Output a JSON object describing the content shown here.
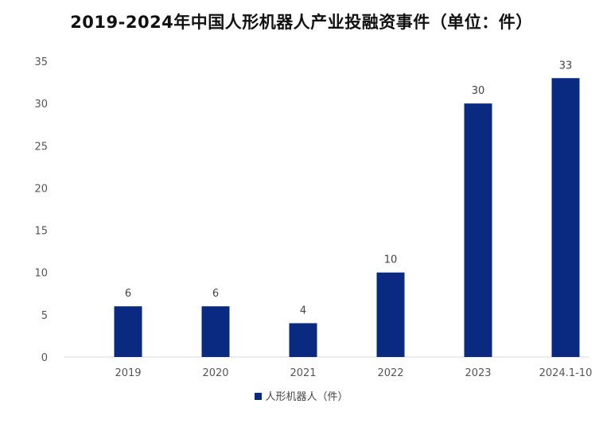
{
  "chart_data": {
    "type": "bar",
    "title": "2019-2024年中国人形机器人产业投融资事件（单位：件）",
    "categories": [
      "2019",
      "2020",
      "2021",
      "2022",
      "2023",
      "2024.1-10"
    ],
    "series": [
      {
        "name": "人形机器人（件）",
        "values": [
          6,
          6,
          4,
          10,
          30,
          33
        ],
        "color": "#0a2a82"
      }
    ],
    "y_ticks": [
      0,
      5,
      10,
      15,
      20,
      25,
      30,
      35
    ],
    "ylim": [
      0,
      35
    ],
    "xlabel": "",
    "ylabel": "",
    "grid": false,
    "legend_position": "bottom-center",
    "data_labels": true
  }
}
